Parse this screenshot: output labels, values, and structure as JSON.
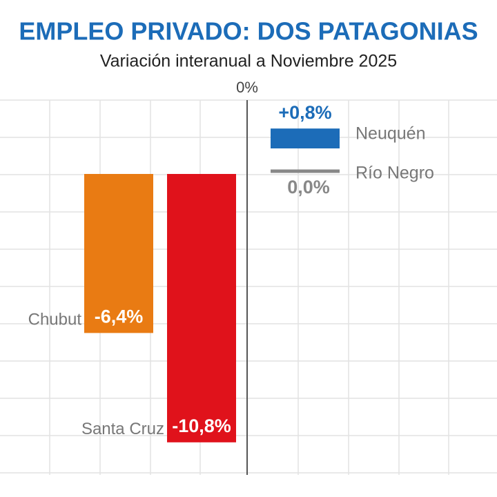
{
  "chart_data": {
    "type": "bar",
    "title": "EMPLEO PRIVADO: DOS PATAGONIAS",
    "subtitle": "Variación interanual a Noviembre 2025",
    "zero_label": "0%",
    "categories": [
      "Neuquén",
      "Río Negro",
      "Chubut",
      "Santa Cruz"
    ],
    "values": [
      0.8,
      0.0,
      -6.4,
      -10.8
    ],
    "value_labels": [
      "+0,8%",
      "0,0%",
      "-6,4%",
      "-10,8%"
    ],
    "colors": [
      "#1c6cb8",
      "#888888",
      "#e97b13",
      "#e0121b"
    ],
    "grid": true
  }
}
